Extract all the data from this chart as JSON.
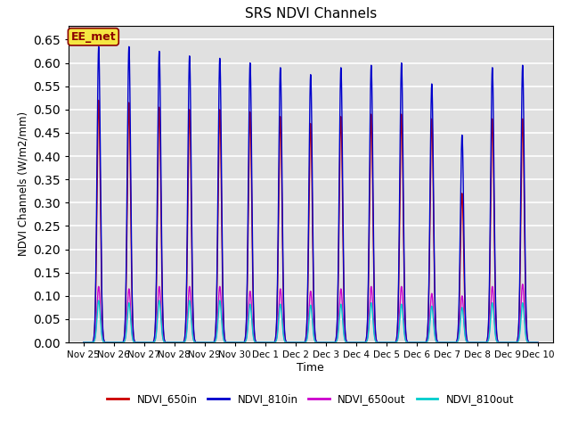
{
  "title": "SRS NDVI Channels",
  "xlabel": "Time",
  "ylabel": "NDVI Channels (W/m2/mm)",
  "ylim": [
    0.0,
    0.68
  ],
  "xlim": [
    -0.5,
    15.5
  ],
  "background_color": "#e0e0e0",
  "grid_color": "white",
  "annotation_text": "EE_met",
  "annotation_bg": "#f5e642",
  "annotation_border": "#8b0000",
  "series": [
    {
      "label": "NDVI_650in",
      "color": "#cc0000",
      "lw": 1.0,
      "peak_heights": [
        0.52,
        0.515,
        0.505,
        0.5,
        0.5,
        0.495,
        0.485,
        0.47,
        0.485,
        0.49,
        0.49,
        0.48,
        0.32,
        0.48,
        0.48
      ]
    },
    {
      "label": "NDVI_810in",
      "color": "#0000cc",
      "lw": 1.0,
      "peak_heights": [
        0.635,
        0.635,
        0.625,
        0.615,
        0.61,
        0.6,
        0.59,
        0.575,
        0.59,
        0.595,
        0.6,
        0.555,
        0.445,
        0.59,
        0.595
      ]
    },
    {
      "label": "NDVI_650out",
      "color": "#cc00cc",
      "lw": 1.0,
      "peak_heights": [
        0.12,
        0.115,
        0.12,
        0.12,
        0.12,
        0.11,
        0.115,
        0.11,
        0.115,
        0.12,
        0.12,
        0.105,
        0.1,
        0.12,
        0.125
      ]
    },
    {
      "label": "NDVI_810out",
      "color": "#00cccc",
      "lw": 1.0,
      "peak_heights": [
        0.09,
        0.085,
        0.09,
        0.09,
        0.09,
        0.082,
        0.082,
        0.08,
        0.082,
        0.085,
        0.082,
        0.078,
        0.075,
        0.085,
        0.085
      ]
    }
  ],
  "tick_labels": [
    "Nov 25",
    "Nov 26",
    "Nov 27",
    "Nov 28",
    "Nov 29",
    "Nov 30",
    "Dec 1",
    "Dec 2",
    "Dec 3",
    "Dec 4",
    "Dec 5",
    "Dec 6",
    "Dec 7",
    "Dec 8",
    "Dec 9",
    "Dec 10"
  ],
  "tick_positions": [
    0,
    1,
    2,
    3,
    4,
    5,
    6,
    7,
    8,
    9,
    10,
    11,
    12,
    13,
    14,
    15
  ],
  "yticks": [
    0.0,
    0.05,
    0.1,
    0.15,
    0.2,
    0.25,
    0.3,
    0.35,
    0.4,
    0.45,
    0.5,
    0.55,
    0.6,
    0.65
  ],
  "figsize": [
    6.4,
    4.8
  ],
  "dpi": 100
}
